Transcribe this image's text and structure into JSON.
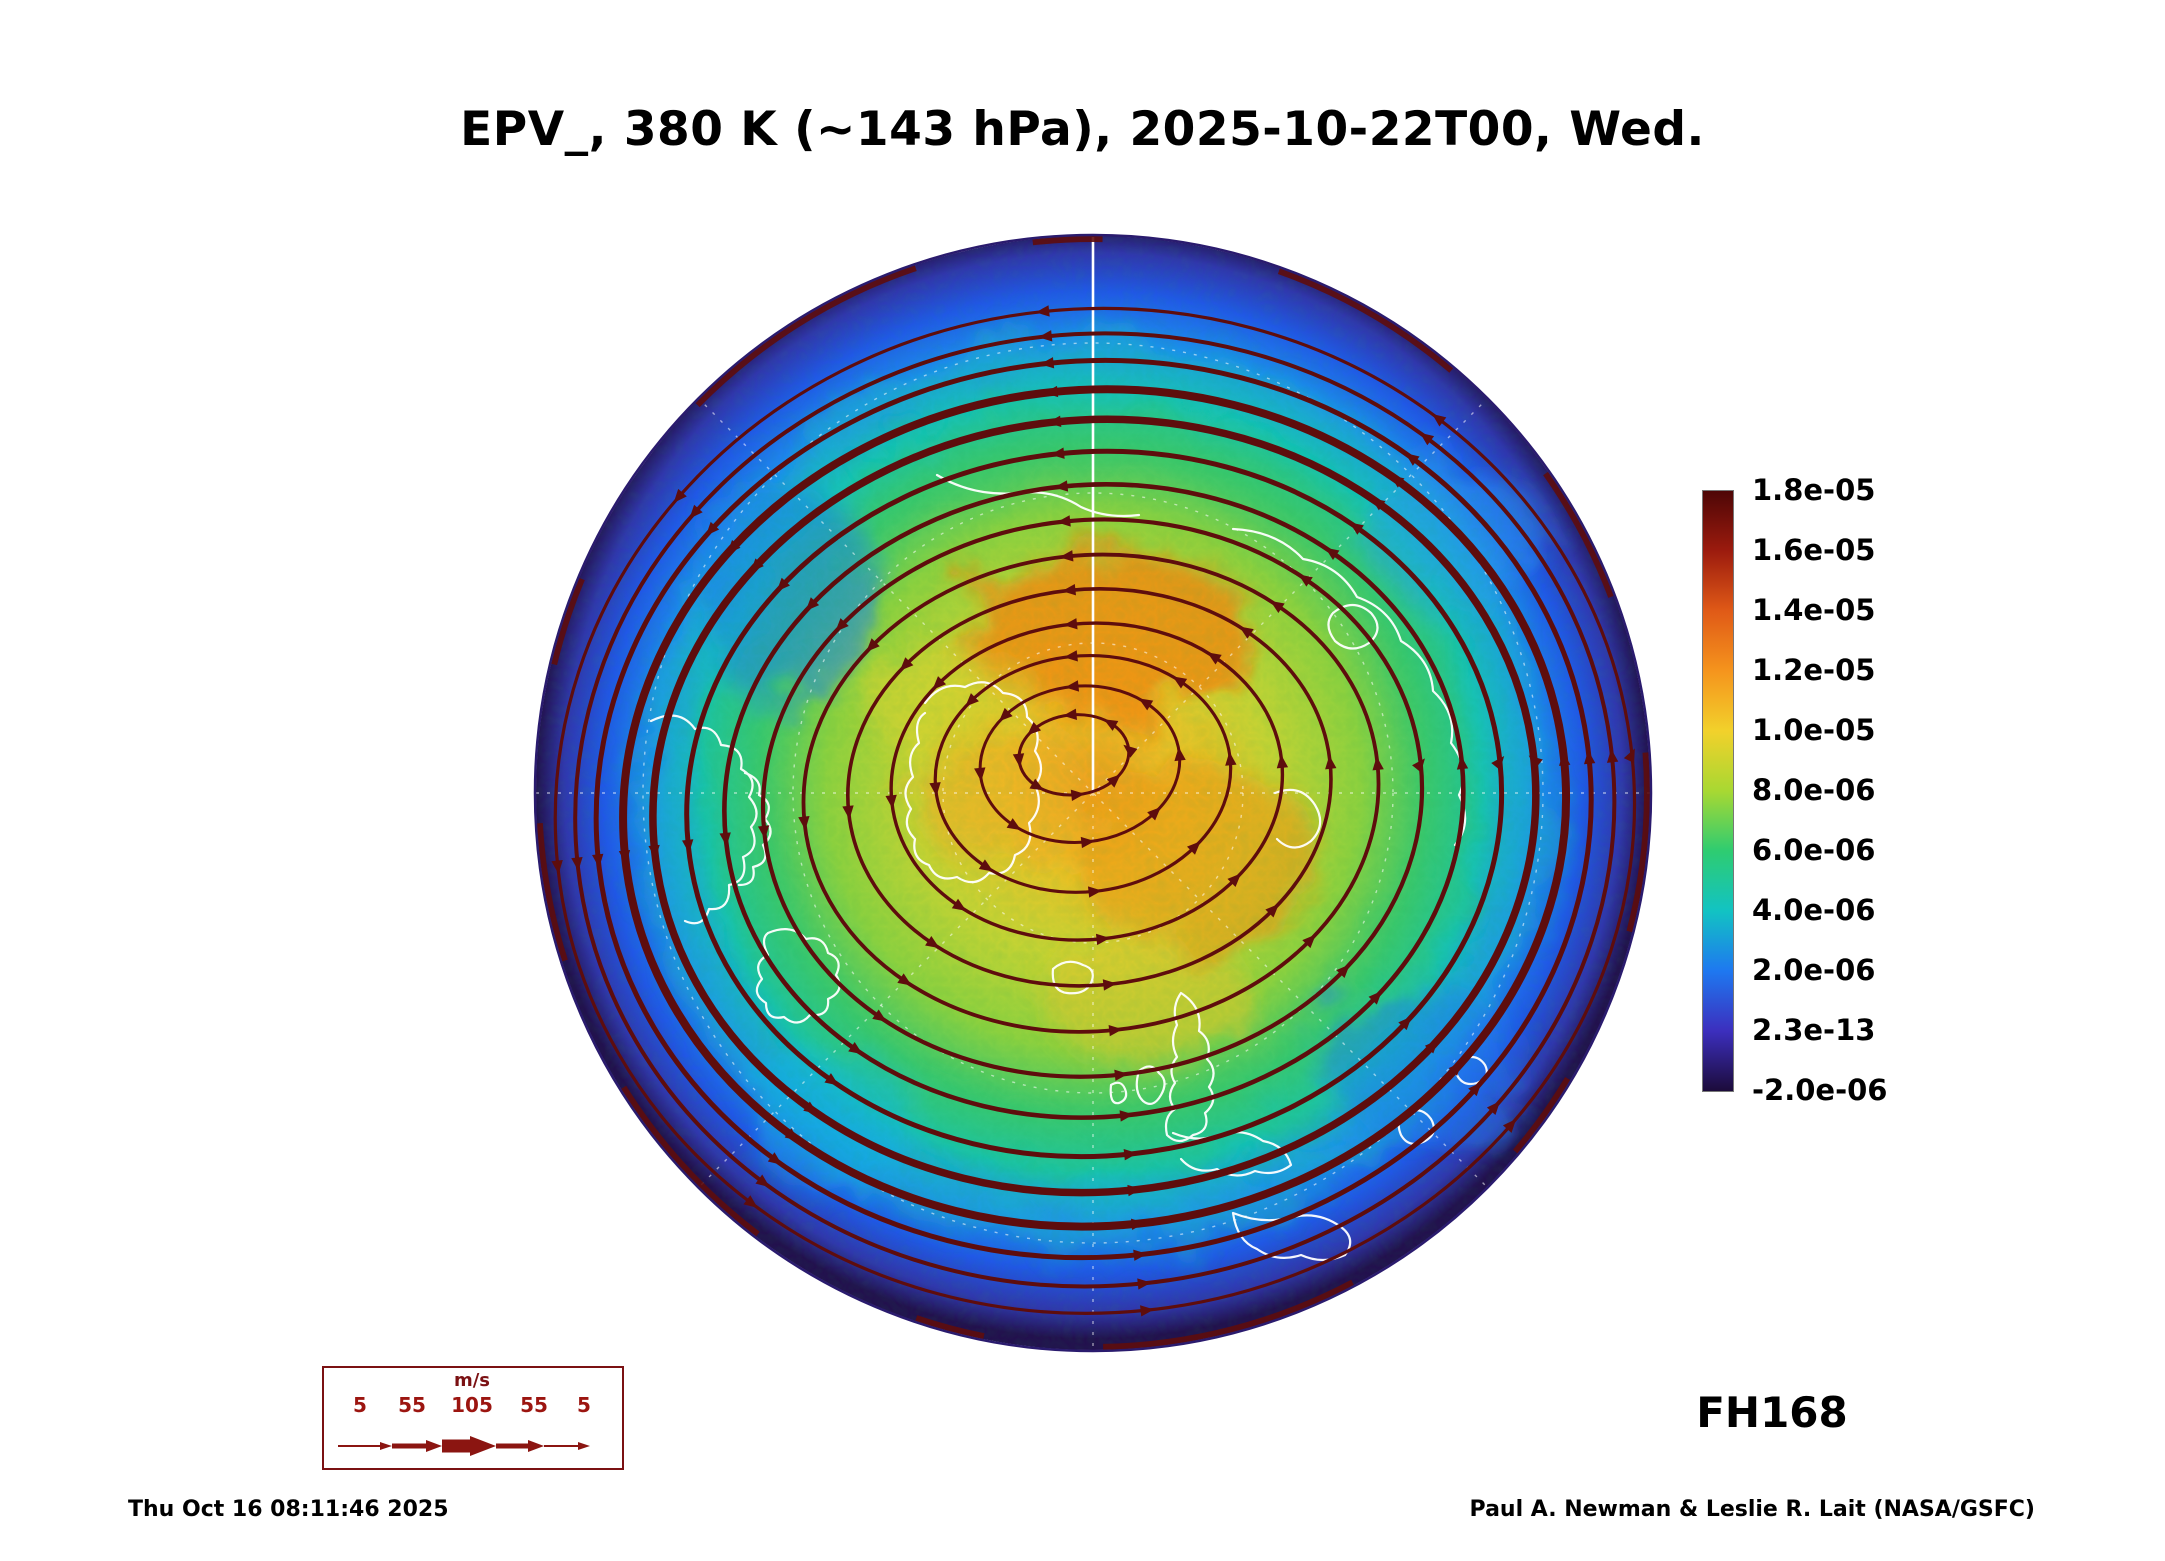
{
  "title": "EPV_, 380 K (~143 hPa), 2025-10-22T00, Wed.",
  "colorbar": {
    "ticks": [
      "1.8e-05",
      "1.6e-05",
      "1.4e-05",
      "1.2e-05",
      "1.0e-05",
      "8.0e-06",
      "6.0e-06",
      "4.0e-06",
      "2.0e-06",
      "2.3e-13",
      "-2.0e-06"
    ],
    "colors_top_to_bottom": [
      "#4e0606",
      "#9c1b0e",
      "#e05a17",
      "#f5941d",
      "#f2d12b",
      "#a8d832",
      "#2ecc71",
      "#12c3c3",
      "#1e78f0",
      "#3c2fbe",
      "#1c0b3a"
    ]
  },
  "wind_legend": {
    "unit": "m/s",
    "tick_values": [
      "5",
      "55",
      "105",
      "55",
      "5"
    ]
  },
  "annotations": {
    "forecast_hour": "FH168",
    "generated": "Thu Oct 16 08:11:46 2025",
    "credit": "Paul A. Newman & Leslie R. Lait (NASA/GSFC)"
  },
  "chart_data": {
    "type": "heatmap",
    "title": "EPV_, 380 K (~143 hPa), 2025-10-22T00, Wed.",
    "variable": "EPV (Ertel potential vorticity)",
    "isentropic_level": "380 K (~143 hPa)",
    "valid_time": "2025-10-22T00, Wed.",
    "forecast_hour_label": "FH168",
    "generated_timestamp": "Thu Oct 16 08:11:46 2025",
    "credit": "Paul A. Newman & Leslie R. Lait (NASA/GSFC)",
    "projection": "Northern Hemisphere polar stereographic disk, North Pole at center",
    "colorbar": {
      "orientation": "vertical-right",
      "tick_labels_top_to_bottom": [
        "1.8e-05",
        "1.6e-05",
        "1.4e-05",
        "1.2e-05",
        "1.0e-05",
        "8.0e-06",
        "6.0e-06",
        "4.0e-06",
        "2.0e-06",
        "2.3e-13",
        "-2.0e-06"
      ],
      "value_range": [
        -2e-06,
        1.8e-05
      ],
      "color_scale_top_to_bottom": [
        "dark maroon",
        "red",
        "orange-red",
        "orange",
        "yellow",
        "yellow-green",
        "green",
        "cyan",
        "blue",
        "blue-violet",
        "dark violet"
      ]
    },
    "field_pattern": [
      {
        "region": "polar vortex interior (disk center)",
        "approx_epv": "8.0e-06 to 1.3e-05",
        "appearance": "yellow to orange mottled field with orange maxima near the pole"
      },
      {
        "region": "vortex edge / polar night jet",
        "approx_epv": "about 5.0e-06 to 8.0e-06, tight gradient",
        "appearance": "green-to-cyan band with densest, thickest dark-red streamlines"
      },
      {
        "region": "outside vortex toward disk rim",
        "approx_epv": "2.3e-13 to 4.0e-06",
        "appearance": "cyan to blue mottled field"
      },
      {
        "region": "disk rim (lowest latitudes shown)",
        "approx_epv": "near 0 to -2.0e-06",
        "appearance": "deep blue-violet with dark-red flecks"
      }
    ],
    "overlays": {
      "streamlines": "dark-red wind streamlines with arrowheads circling the pole counterclockwise; line thickness scales with wind speed per m/s legend",
      "coastlines": "white continental outlines",
      "graticule": "faint dashed white latitude circles and meridians, solid white meridian from pole to top of disk"
    },
    "wind_speed_legend_m_s": [
      5,
      55,
      105,
      55,
      5
    ]
  }
}
